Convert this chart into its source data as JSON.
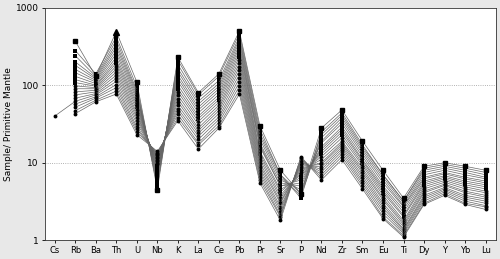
{
  "elements": [
    "Cs",
    "Rb",
    "Ba",
    "Th",
    "U",
    "Nb",
    "K",
    "La",
    "Ce",
    "Pb",
    "Pr",
    "Sr",
    "P",
    "Nd",
    "Zr",
    "Sm",
    "Eu",
    "Ti",
    "Dy",
    "Y",
    "Yb",
    "Lu"
  ],
  "ylim": [
    1,
    1000
  ],
  "ylabel": "Sample/ Primitive Mantle",
  "hlines": [
    10,
    100
  ],
  "line_color": "#666666",
  "series": [
    [
      null,
      370,
      130,
      490,
      110,
      4.5,
      230,
      80,
      140,
      500,
      30,
      8,
      4.0,
      28,
      48,
      19,
      8,
      3.5,
      9,
      10,
      9,
      8
    ],
    [
      null,
      280,
      140,
      420,
      95,
      5.0,
      210,
      75,
      130,
      460,
      27,
      7,
      3.5,
      25,
      44,
      17,
      7,
      3.2,
      8.5,
      9.5,
      8.5,
      7.5
    ],
    [
      null,
      240,
      130,
      380,
      85,
      5.5,
      185,
      68,
      115,
      420,
      24,
      7,
      4.0,
      23,
      41,
      16,
      7,
      3.2,
      8,
      9,
      8,
      7
    ],
    [
      null,
      200,
      125,
      340,
      80,
      6.0,
      165,
      62,
      105,
      390,
      22,
      6.5,
      3.8,
      21,
      38,
      15,
      6.5,
      3.0,
      7.5,
      8.5,
      7.5,
      6.5
    ],
    [
      null,
      180,
      120,
      310,
      75,
      6.5,
      150,
      57,
      97,
      360,
      20,
      6,
      4.5,
      19,
      35,
      14,
      6,
      2.8,
      7,
      8,
      7,
      6.2
    ],
    [
      null,
      160,
      115,
      280,
      70,
      7.0,
      135,
      52,
      90,
      330,
      18,
      5.5,
      5.0,
      18,
      32,
      13,
      5.5,
      2.7,
      6.5,
      7.5,
      6.5,
      5.8
    ],
    [
      null,
      145,
      110,
      255,
      65,
      7.5,
      123,
      48,
      83,
      305,
      17,
      5,
      5.5,
      16,
      29,
      12,
      5,
      2.5,
      6.2,
      7.2,
      6.2,
      5.5
    ],
    [
      null,
      130,
      105,
      230,
      60,
      8.0,
      112,
      44,
      76,
      280,
      16,
      5,
      6.0,
      15,
      27,
      11,
      4.7,
      2.3,
      5.8,
      6.8,
      5.8,
      5.2
    ],
    [
      null,
      118,
      100,
      210,
      56,
      8.5,
      100,
      40,
      70,
      256,
      14,
      4.5,
      6.5,
      14,
      25,
      10.5,
      4.4,
      2.1,
      5.5,
      6.5,
      5.5,
      4.9
    ],
    [
      null,
      108,
      97,
      193,
      52,
      9.0,
      90,
      37,
      65,
      233,
      13,
      4.2,
      7.0,
      13,
      23,
      9.8,
      4.1,
      2.0,
      5.2,
      6.2,
      5.2,
      4.6
    ],
    [
      null,
      98,
      93,
      177,
      48,
      9.5,
      82,
      34,
      60,
      211,
      12,
      3.8,
      7.5,
      12,
      21,
      9.2,
      3.8,
      1.8,
      4.9,
      5.9,
      4.9,
      4.3
    ],
    [
      null,
      90,
      90,
      162,
      44,
      10.0,
      74,
      31,
      55,
      191,
      11,
      3.5,
      8.0,
      11,
      19,
      8.5,
      3.5,
      1.7,
      4.6,
      5.6,
      4.6,
      4.1
    ],
    [
      null,
      82,
      86,
      148,
      41,
      10.5,
      67,
      28,
      51,
      172,
      10,
      3.2,
      8.5,
      10,
      18,
      7.9,
      3.3,
      1.6,
      4.3,
      5.3,
      4.3,
      3.8
    ],
    [
      null,
      75,
      82,
      135,
      38,
      11.0,
      61,
      26,
      47,
      155,
      9.2,
      3.0,
      9.0,
      9.5,
      17,
      7.4,
      3.0,
      1.5,
      4.1,
      5.1,
      4.1,
      3.6
    ],
    [
      null,
      68,
      78,
      123,
      35,
      11.5,
      55,
      24,
      43,
      138,
      8.5,
      2.7,
      9.5,
      8.8,
      16,
      6.8,
      2.8,
      1.4,
      3.8,
      4.8,
      3.8,
      3.4
    ],
    [
      40,
      62,
      75,
      112,
      32,
      12.0,
      50,
      22,
      39,
      123,
      7.8,
      2.5,
      10.0,
      8.2,
      15,
      6.3,
      2.6,
      1.35,
      3.6,
      4.6,
      3.6,
      3.2
    ],
    [
      null,
      57,
      71,
      102,
      29,
      12.5,
      46,
      20,
      36,
      109,
      7.2,
      2.3,
      10.5,
      7.6,
      14,
      5.8,
      2.4,
      1.28,
      3.4,
      4.4,
      3.4,
      3.0
    ],
    [
      null,
      52,
      68,
      93,
      27,
      13.0,
      42,
      18,
      33,
      97,
      6.6,
      2.1,
      11.0,
      7.0,
      13,
      5.4,
      2.2,
      1.22,
      3.2,
      4.2,
      3.2,
      2.8
    ],
    [
      null,
      47,
      64,
      84,
      25,
      13.5,
      38,
      17,
      30,
      86,
      6.0,
      2.0,
      11.5,
      6.5,
      12,
      5.0,
      2.0,
      1.15,
      3.0,
      4.0,
      3.0,
      2.7
    ],
    [
      null,
      43,
      61,
      77,
      23,
      14.0,
      35,
      15,
      28,
      77,
      5.5,
      1.8,
      12.0,
      6.0,
      11,
      4.6,
      1.9,
      1.1,
      2.9,
      3.8,
      2.9,
      2.5
    ]
  ],
  "series_markers": [
    "sq",
    "sq",
    "sq",
    "sq",
    "sq",
    "sq",
    "sq",
    "sq",
    "sq",
    "sq",
    "ci",
    "ci",
    "ci",
    "ci",
    "ci",
    "ci",
    "ci",
    "ci",
    "ci",
    "ci"
  ],
  "triangle_series_idx": 0,
  "triangle_element_idx": 3,
  "figsize": [
    5.0,
    2.59
  ],
  "dpi": 100
}
